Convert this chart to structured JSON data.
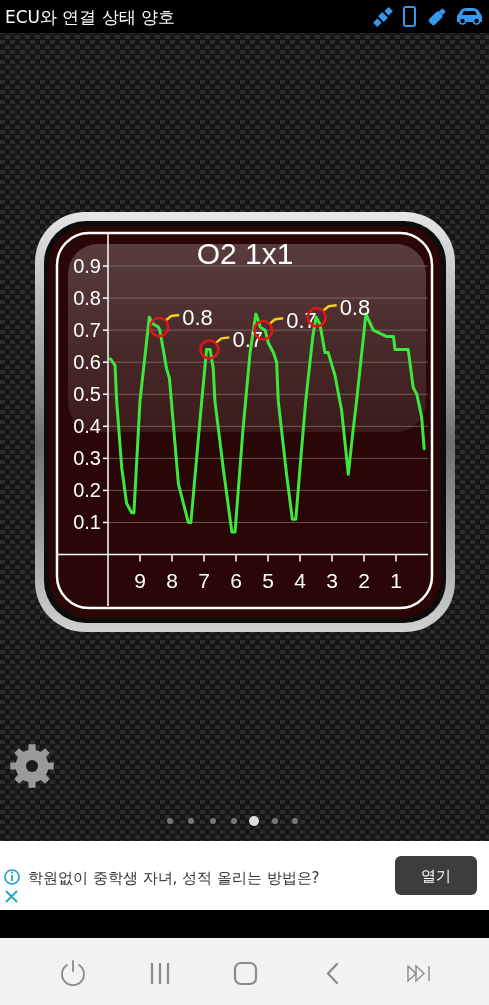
{
  "chart_data": {
    "type": "line",
    "title": "O2 1x1",
    "x": [
      9.92,
      9.78,
      9.73,
      9.57,
      9.42,
      9.26,
      9.19,
      9.0,
      8.71,
      8.6,
      8.43,
      8.38,
      8.17,
      8.08,
      7.8,
      7.49,
      7.41,
      7.07,
      6.92,
      6.81,
      6.71,
      6.66,
      6.4,
      6.13,
      6.03,
      5.79,
      5.56,
      5.38,
      5.3,
      5.25,
      5.09,
      4.99,
      4.83,
      4.73,
      4.68,
      4.42,
      4.24,
      4.13,
      4.0,
      3.82,
      3.6,
      3.5,
      3.38,
      3.22,
      3.12,
      2.91,
      2.7,
      2.49,
      2.35,
      2.23,
      2.07,
      1.94,
      1.71,
      1.5,
      1.29,
      1.08,
      1.03,
      0.62,
      0.46,
      0.35,
      0.2,
      0.12
    ],
    "series": [
      {
        "color": "#3be83b",
        "values": [
          0.61,
          0.59,
          0.48,
          0.27,
          0.16,
          0.13,
          0.13,
          0.48,
          0.74,
          0.72,
          0.71,
          0.7,
          0.58,
          0.55,
          0.22,
          0.1,
          0.1,
          0.48,
          0.64,
          0.64,
          0.58,
          0.48,
          0.27,
          0.07,
          0.07,
          0.38,
          0.63,
          0.75,
          0.73,
          0.71,
          0.7,
          0.66,
          0.63,
          0.6,
          0.48,
          0.25,
          0.11,
          0.11,
          0.27,
          0.48,
          0.68,
          0.74,
          0.72,
          0.63,
          0.63,
          0.56,
          0.45,
          0.25,
          0.38,
          0.48,
          0.63,
          0.75,
          0.7,
          0.69,
          0.68,
          0.68,
          0.64,
          0.64,
          0.52,
          0.5,
          0.43,
          0.33
        ]
      }
    ],
    "xlim": [
      10,
      0
    ],
    "xticks": [
      9,
      8,
      7,
      6,
      5,
      4,
      3,
      2,
      1
    ],
    "ylim": [
      0,
      1
    ],
    "yticks": [
      0.1,
      0.2,
      0.3,
      0.4,
      0.5,
      0.6,
      0.7,
      0.8,
      0.9
    ],
    "grid": "y",
    "annotations": [
      "ECU와 연결 상태 양호",
      {
        "text": "0.8",
        "x": 8.4,
        "y": 0.71
      },
      {
        "text": "0.7",
        "x": 6.83,
        "y": 0.64
      },
      {
        "text": "0.7",
        "x": 5.15,
        "y": 0.7
      },
      {
        "text": "0.8",
        "x": 3.48,
        "y": 0.74
      },
      "학원없이 중학생 자녀, 성적 올리는 방법은?",
      "열기"
    ]
  }
}
